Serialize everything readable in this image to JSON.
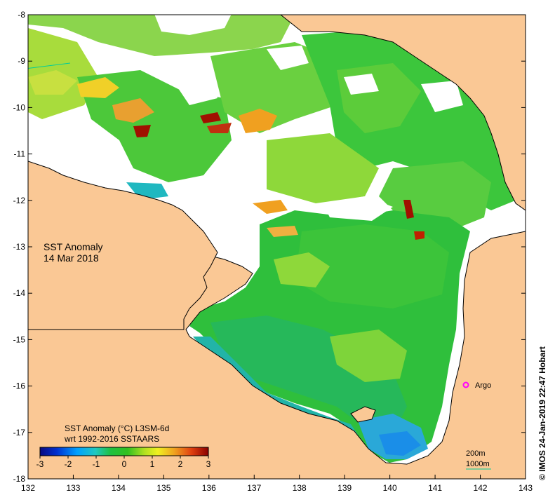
{
  "map": {
    "title": "SST Anomaly",
    "date": "14 Mar 2018",
    "credit": "© IMOS 24-Jan-2019 22:47 Hobart",
    "x_ticks": [
      "132",
      "133",
      "134",
      "135",
      "136",
      "137",
      "138",
      "139",
      "140",
      "141",
      "142",
      "143"
    ],
    "y_ticks": [
      "-8",
      "-9",
      "-10",
      "-11",
      "-12",
      "-13",
      "-14",
      "-15",
      "-16",
      "-17",
      "-18"
    ],
    "colorbar": {
      "title_line1": "SST Anomaly (°C) L3SM-6d",
      "title_line2": "wrt 1992-2016 SSTAARS",
      "ticks": [
        "-3",
        "-2",
        "-1",
        "0",
        "1",
        "2",
        "3"
      ],
      "range": [
        -3,
        3
      ]
    },
    "argo_label": "Argo",
    "contour_200": "200m",
    "contour_1000": "1000m",
    "colors": {
      "land": "#fac895",
      "background": "#ffffff",
      "argo": "#ff00ff",
      "contour_1000": "#00cc99"
    }
  }
}
